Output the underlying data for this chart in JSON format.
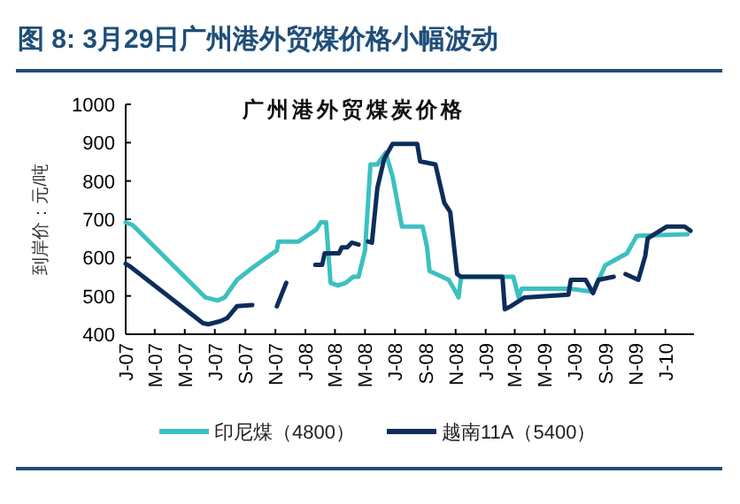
{
  "chart_data": {
    "type": "line",
    "title": "图 8: 3月29日广州港外贸煤价格小幅波动",
    "subtitle": "广州港外贸煤炭价格",
    "ylabel": "到岸价：元/吨",
    "xlim": [
      "2007-01-01",
      "2010-02-28"
    ],
    "ylim": [
      400,
      1000
    ],
    "yticks": [
      400,
      500,
      600,
      700,
      800,
      900,
      1000
    ],
    "xticks": [
      {
        "value": "2007-01",
        "label": "J-07"
      },
      {
        "value": "2007-03",
        "label": "M-07"
      },
      {
        "value": "2007-05",
        "label": "M-07"
      },
      {
        "value": "2007-07",
        "label": "J-07"
      },
      {
        "value": "2007-09",
        "label": "S-07"
      },
      {
        "value": "2007-11",
        "label": "N-07"
      },
      {
        "value": "2008-01",
        "label": "J-08"
      },
      {
        "value": "2008-03",
        "label": "M-08"
      },
      {
        "value": "2008-05",
        "label": "M-08"
      },
      {
        "value": "2008-07",
        "label": "J-08"
      },
      {
        "value": "2008-09",
        "label": "S-08"
      },
      {
        "value": "2008-11",
        "label": "N-08"
      },
      {
        "value": "2009-01",
        "label": "J-09"
      },
      {
        "value": "2009-03",
        "label": "M-09"
      },
      {
        "value": "2009-05",
        "label": "M-09"
      },
      {
        "value": "2009-07",
        "label": "J-09"
      },
      {
        "value": "2009-09",
        "label": "S-09"
      },
      {
        "value": "2009-11",
        "label": "N-09"
      },
      {
        "value": "2010-01",
        "label": "J-10"
      }
    ],
    "legend": "bottom",
    "series": [
      {
        "name": "印尼煤（4800）",
        "color": "#3cc0c0",
        "x": [
          "2007-01-01",
          "2007-01-15",
          "2007-06-12",
          "2007-07-07",
          "2007-07-21",
          "2007-08-15",
          "2007-09-15",
          "2007-11-04",
          "2007-11-07",
          "2007-12-18",
          "2008-01-23",
          "2008-02-01",
          "2008-02-12",
          "2008-02-21",
          "2008-03-07",
          "2008-03-23",
          "2008-04-07",
          "2008-04-18",
          "2008-05-01",
          "2008-05-12",
          "2008-05-26",
          "2008-06-12",
          "2008-06-26",
          "2008-07-15",
          "2008-08-26",
          "2008-09-04",
          "2008-09-09",
          "2008-10-18",
          "2008-11-01",
          "2008-11-07",
          "2008-11-12",
          "2009-02-26",
          "2009-03-09",
          "2009-03-15",
          "2009-06-21",
          "2009-08-07",
          "2009-09-01",
          "2009-10-15",
          "2009-11-04",
          "2010-02-15"
        ],
        "values": [
          692,
          685,
          496,
          488,
          496,
          542,
          573,
          619,
          642,
          642,
          673,
          692,
          692,
          534,
          527,
          534,
          550,
          550,
          619,
          843,
          843,
          874,
          812,
          681,
          681,
          627,
          565,
          542,
          511,
          496,
          550,
          550,
          496,
          519,
          519,
          511,
          580,
          611,
          657,
          661
        ]
      },
      {
        "name": "越南11A（5400）",
        "color": "#0d2d5a",
        "x": [
          "2007-01-01",
          "2007-01-12",
          "2007-06-07",
          "2007-06-18",
          "2007-07-12",
          "2007-07-26",
          "2007-08-15",
          "2007-09-15",
          "2007-10-15",
          "2007-11-04",
          "2007-11-23",
          "2007-12-20",
          "2008-01-21",
          "2008-02-04",
          "2008-02-09",
          "2008-03-09",
          "2008-03-15",
          "2008-03-26",
          "2008-04-04",
          "2008-04-18",
          "2008-04-28",
          "2008-05-07",
          "2008-05-15",
          "2008-05-26",
          "2008-06-09",
          "2008-06-26",
          "2008-08-15",
          "2008-08-21",
          "2008-09-21",
          "2008-10-09",
          "2008-10-21",
          "2008-11-04",
          "2008-11-12",
          "2009-02-04",
          "2009-02-09",
          "2009-02-21",
          "2009-03-21",
          "2009-06-18",
          "2009-06-23",
          "2009-07-23",
          "2009-08-07",
          "2009-08-18",
          "2009-09-18",
          "2009-09-28",
          "2009-10-12",
          "2009-11-07",
          "2009-11-21",
          "2009-11-26",
          "2010-01-04",
          "2010-02-09",
          "2010-02-21"
        ],
        "values": [
          584,
          575,
          429,
          426,
          434,
          442,
          473,
          476,
          null,
          473,
          534,
          null,
          581,
          581,
          611,
          611,
          627,
          627,
          639,
          634,
          null,
          642,
          639,
          781,
          858,
          897,
          897,
          851,
          843,
          743,
          719,
          557,
          550,
          550,
          465,
          473,
          496,
          503,
          542,
          542,
          507,
          542,
          550,
          null,
          557,
          542,
          604,
          650,
          681,
          681,
          670
        ]
      }
    ]
  }
}
